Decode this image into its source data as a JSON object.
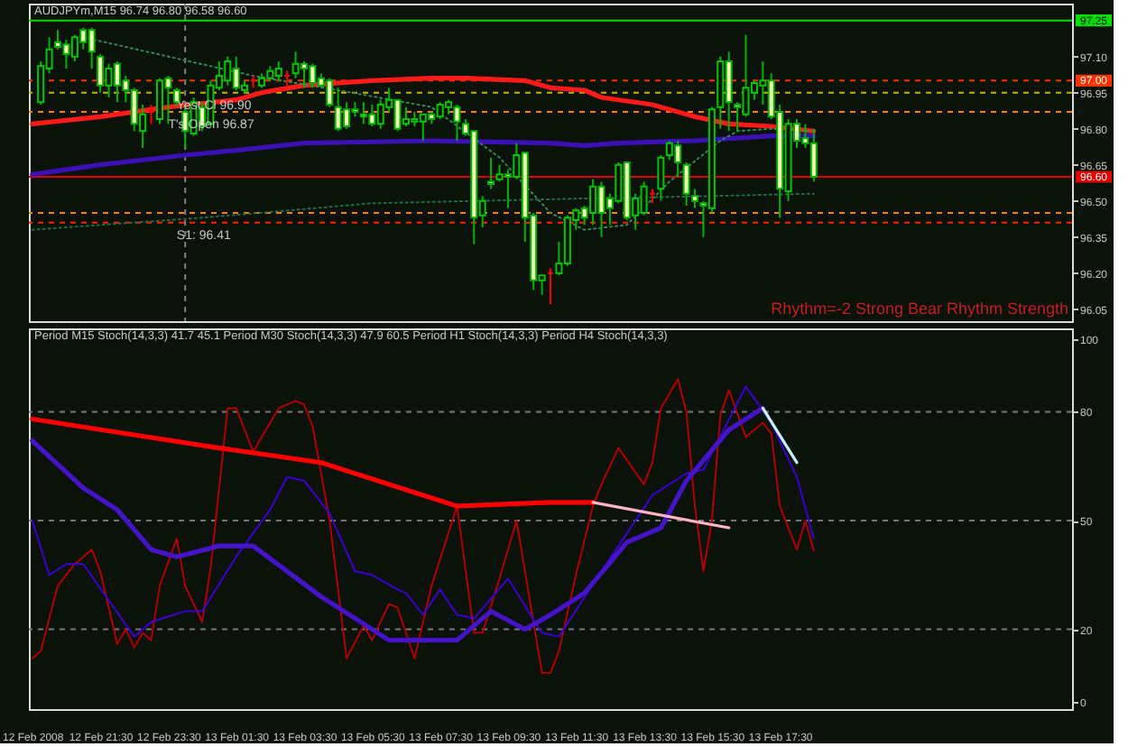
{
  "chart_data": [
    {
      "type": "candlestick",
      "title": "AUDJPYm,M15 96.74 96.80 96.58 96.60",
      "color": "#00b400",
      "x": [
        "2008-02-12T19:45",
        "2008-02-12T20:00",
        "2008-02-12T20:15",
        "2008-02-12T20:30",
        "2008-02-12T20:45",
        "2008-02-12T21:00",
        "2008-02-12T21:15",
        "2008-02-12T21:30",
        "2008-02-12T21:45",
        "2008-02-12T22:00",
        "2008-02-12T22:15",
        "2008-02-12T22:30",
        "2008-02-12T22:45",
        "2008-02-12T23:00",
        "2008-02-12T23:15",
        "2008-02-12T23:30",
        "2008-02-12T23:45",
        "2008-02-13T00:00",
        "2008-02-13T00:15",
        "2008-02-13T00:30",
        "2008-02-13T00:45",
        "2008-02-13T01:00",
        "2008-02-13T01:15",
        "2008-02-13T01:30",
        "2008-02-13T01:45",
        "2008-02-13T02:00",
        "2008-02-13T02:15",
        "2008-02-13T02:30",
        "2008-02-13T02:45",
        "2008-02-13T03:00",
        "2008-02-13T03:15",
        "2008-02-13T03:30",
        "2008-02-13T03:45",
        "2008-02-13T04:00",
        "2008-02-13T04:15",
        "2008-02-13T04:30",
        "2008-02-13T04:45",
        "2008-02-13T05:00",
        "2008-02-13T05:15",
        "2008-02-13T05:30",
        "2008-02-13T05:45",
        "2008-02-13T06:00",
        "2008-02-13T06:15",
        "2008-02-13T06:30",
        "2008-02-13T06:45",
        "2008-02-13T07:00",
        "2008-02-13T07:15",
        "2008-02-13T07:30",
        "2008-02-13T07:45",
        "2008-02-13T08:00",
        "2008-02-13T08:15",
        "2008-02-13T08:30",
        "2008-02-13T08:45",
        "2008-02-13T09:00",
        "2008-02-13T09:15",
        "2008-02-13T09:30",
        "2008-02-13T09:45",
        "2008-02-13T10:00",
        "2008-02-13T10:15",
        "2008-02-13T10:30",
        "2008-02-13T10:45",
        "2008-02-13T11:00",
        "2008-02-13T11:15",
        "2008-02-13T11:30",
        "2008-02-13T11:45",
        "2008-02-13T12:00",
        "2008-02-13T12:15",
        "2008-02-13T12:30",
        "2008-02-13T12:45",
        "2008-02-13T13:00",
        "2008-02-13T13:15",
        "2008-02-13T13:30",
        "2008-02-13T13:45",
        "2008-02-13T14:00",
        "2008-02-13T14:15",
        "2008-02-13T14:30",
        "2008-02-13T14:45",
        "2008-02-13T15:00",
        "2008-02-13T15:15",
        "2008-02-13T15:30",
        "2008-02-13T15:45",
        "2008-02-13T16:00",
        "2008-02-13T16:15",
        "2008-02-13T16:30",
        "2008-02-13T16:45",
        "2008-02-13T17:00",
        "2008-02-13T17:15",
        "2008-02-13T17:30",
        "2008-02-13T17:45",
        "2008-02-13T18:00",
        "2008-02-13T18:15",
        "2008-02-13T18:30"
      ],
      "ohlc": [
        [
          96.91,
          97.08,
          96.9,
          97.06
        ],
        [
          97.05,
          97.18,
          97.03,
          97.13
        ],
        [
          97.16,
          97.21,
          97.13,
          97.14
        ],
        [
          97.15,
          97.17,
          97.05,
          97.11
        ],
        [
          97.1,
          97.19,
          97.08,
          97.18
        ],
        [
          97.21,
          97.22,
          97.13,
          97.16
        ],
        [
          97.21,
          97.22,
          97.05,
          97.12
        ],
        [
          97.1,
          97.11,
          96.95,
          96.98
        ],
        [
          96.98,
          97.07,
          96.93,
          97.05
        ],
        [
          97.07,
          97.08,
          96.91,
          96.98
        ],
        [
          97.0,
          97.02,
          96.91,
          96.96
        ],
        [
          96.96,
          96.97,
          96.79,
          96.82
        ],
        [
          96.79,
          96.9,
          96.72,
          96.86
        ],
        [
          96.87,
          96.9,
          96.82,
          96.87
        ],
        [
          96.84,
          97.01,
          96.82,
          97.0
        ],
        [
          97.01,
          97.02,
          96.82,
          96.97
        ],
        [
          96.96,
          96.97,
          96.89,
          96.91
        ],
        [
          96.87,
          96.9,
          96.72,
          96.79
        ],
        [
          96.78,
          96.93,
          96.77,
          96.91
        ],
        [
          96.89,
          96.91,
          96.79,
          96.81
        ],
        [
          96.82,
          97.0,
          96.81,
          96.98
        ],
        [
          96.97,
          97.08,
          96.96,
          97.02
        ],
        [
          97.0,
          97.1,
          96.98,
          97.08
        ],
        [
          97.05,
          97.1,
          96.96,
          96.97
        ],
        [
          96.96,
          97.0,
          96.95,
          96.98
        ],
        [
          97.0,
          97.02,
          96.97,
          97.0
        ],
        [
          96.98,
          97.03,
          96.97,
          97.01
        ],
        [
          97.01,
          97.06,
          97.0,
          97.04
        ],
        [
          97.02,
          97.08,
          97.0,
          97.05
        ],
        [
          97.02,
          97.04,
          96.98,
          97.02
        ],
        [
          97.03,
          97.12,
          97.01,
          97.07
        ],
        [
          97.07,
          97.08,
          96.97,
          97.05
        ],
        [
          97.06,
          97.07,
          96.97,
          96.99
        ],
        [
          97.01,
          97.03,
          96.97,
          96.98
        ],
        [
          97.0,
          97.01,
          96.89,
          96.9
        ],
        [
          96.89,
          96.97,
          96.79,
          96.8
        ],
        [
          96.88,
          96.91,
          96.8,
          96.81
        ],
        [
          96.88,
          96.91,
          96.85,
          96.87
        ],
        [
          96.86,
          96.91,
          96.82,
          96.85
        ],
        [
          96.86,
          96.9,
          96.81,
          96.82
        ],
        [
          96.82,
          96.92,
          96.8,
          96.9
        ],
        [
          96.89,
          96.97,
          96.87,
          96.92
        ],
        [
          96.92,
          96.92,
          96.79,
          96.8
        ],
        [
          96.82,
          96.89,
          96.81,
          96.84
        ],
        [
          96.83,
          96.87,
          96.81,
          96.84
        ],
        [
          96.83,
          96.86,
          96.75,
          96.86
        ],
        [
          96.86,
          96.87,
          96.82,
          96.84
        ],
        [
          96.85,
          96.91,
          96.84,
          96.9
        ],
        [
          96.89,
          96.92,
          96.86,
          96.91
        ],
        [
          96.89,
          96.9,
          96.75,
          96.83
        ],
        [
          96.82,
          96.84,
          96.77,
          96.78
        ],
        [
          96.79,
          96.79,
          96.32,
          96.43
        ],
        [
          96.44,
          96.52,
          96.39,
          96.5
        ],
        [
          96.58,
          96.68,
          96.55,
          96.57
        ],
        [
          96.59,
          96.65,
          96.58,
          96.61
        ],
        [
          96.61,
          96.63,
          96.47,
          96.6
        ],
        [
          96.6,
          96.74,
          96.59,
          96.69
        ],
        [
          96.7,
          96.7,
          96.33,
          96.43
        ],
        [
          96.44,
          96.45,
          96.13,
          96.17
        ],
        [
          96.17,
          96.19,
          96.11,
          96.19
        ],
        [
          96.2,
          96.22,
          96.07,
          96.2
        ],
        [
          96.2,
          96.33,
          96.19,
          96.24
        ],
        [
          96.24,
          96.44,
          96.23,
          96.43
        ],
        [
          96.42,
          96.47,
          96.38,
          96.46
        ],
        [
          96.47,
          96.48,
          96.4,
          96.43
        ],
        [
          96.45,
          96.59,
          96.4,
          96.56
        ],
        [
          96.56,
          96.58,
          96.35,
          96.45
        ],
        [
          96.51,
          96.53,
          96.4,
          96.47
        ],
        [
          96.5,
          96.66,
          96.49,
          96.65
        ],
        [
          96.66,
          96.66,
          96.42,
          96.43
        ],
        [
          96.44,
          96.53,
          96.38,
          96.51
        ],
        [
          96.45,
          96.58,
          96.44,
          96.56
        ],
        [
          96.53,
          96.55,
          96.49,
          96.53
        ],
        [
          96.55,
          96.69,
          96.5,
          96.68
        ],
        [
          96.69,
          96.75,
          96.67,
          96.74
        ],
        [
          96.73,
          96.75,
          96.6,
          96.66
        ],
        [
          96.65,
          96.66,
          96.48,
          96.53
        ],
        [
          96.52,
          96.55,
          96.47,
          96.5
        ],
        [
          96.49,
          96.5,
          96.35,
          96.48
        ],
        [
          96.47,
          96.89,
          96.45,
          96.88
        ],
        [
          96.89,
          97.1,
          96.8,
          97.08
        ],
        [
          97.08,
          97.12,
          96.79,
          96.91
        ],
        [
          96.9,
          96.91,
          96.79,
          96.89
        ],
        [
          96.86,
          97.19,
          96.85,
          96.97
        ],
        [
          96.95,
          97.0,
          96.92,
          96.99
        ],
        [
          96.98,
          97.08,
          96.9,
          97.0
        ],
        [
          97.0,
          97.03,
          96.84,
          96.85
        ],
        [
          96.87,
          96.9,
          96.43,
          96.55
        ],
        [
          96.54,
          96.84,
          96.5,
          96.82
        ],
        [
          96.82,
          96.84,
          96.72,
          96.75
        ],
        [
          96.76,
          96.82,
          96.72,
          96.74
        ],
        [
          96.74,
          96.8,
          96.58,
          96.6
        ]
      ],
      "colors": [
        "#00c800",
        "#00c800",
        "#f0ffb4",
        "#f0ffb4",
        "#00c800",
        "#f0ffb4",
        "#f0ffb4",
        "#f0ffb4",
        "#00c800",
        "#f0ffb4",
        "#f0ffb4",
        "#f0ffb4",
        "#00c800",
        "#ff0000",
        "#00c800",
        "#f0ffb4",
        "#f0ffb4",
        "#f0ffb4",
        "#00c800",
        "#f0ffb4",
        "#00c800",
        "#00c800",
        "#00c800",
        "#f0ffb4",
        "#00c800",
        "#ff0000",
        "#00c800",
        "#00c800",
        "#00c800",
        "#ff0000",
        "#00c800",
        "#f0ffb4",
        "#f0ffb4",
        "#f0ffb4",
        "#f0ffb4",
        "#f0ffb4",
        "#f0ffb4",
        "#f0ffb4",
        "#f0ffb4",
        "#f0ffb4",
        "#00c800",
        "#00c800",
        "#f0ffb4",
        "#00c800",
        "#00c800",
        "#00c800",
        "#f0ffb4",
        "#00c800",
        "#00c800",
        "#f0ffb4",
        "#f0ffb4",
        "#f0ffb4",
        "#00c800",
        "#f0ffb4",
        "#00c800",
        "#f0ffb4",
        "#00c800",
        "#f0ffb4",
        "#f0ffb4",
        "#00c800",
        "#ff0000",
        "#00c800",
        "#00c800",
        "#00c800",
        "#f0ffb4",
        "#00c800",
        "#f0ffb4",
        "#f0ffb4",
        "#00c800",
        "#f0ffb4",
        "#00c800",
        "#00c800",
        "#ff0000",
        "#00c800",
        "#00c800",
        "#f0ffb4",
        "#f0ffb4",
        "#f0ffb4",
        "#f0ffb4",
        "#00c800",
        "#00c800",
        "#f0ffb4",
        "#f0ffb4",
        "#00c800",
        "#00c800",
        "#00c800",
        "#f0ffb4",
        "#f0ffb4",
        "#00c800",
        "#f0ffb4",
        "#f0ffb4",
        "#f0ffb4"
      ],
      "series": [
        {
          "type": "line",
          "color": "#2e8b57",
          "line_style": "dotted",
          "x": [
            "2008-02-12T21:00",
            "2008-02-12T23:30",
            "2008-02-13T02:00",
            "2008-02-13T04:30",
            "2008-02-13T07:15",
            "2008-02-13T09:15",
            "2008-02-13T10:45",
            "2008-02-13T11:45",
            "2008-02-13T13:00",
            "2008-02-13T14:15",
            "2008-02-13T15:45",
            "2008-02-13T16:15",
            "2008-02-13T17:15",
            "2008-02-13T18:30"
          ],
          "values": [
            97.18,
            97.1,
            97.02,
            96.96,
            96.89,
            96.68,
            96.45,
            96.38,
            96.4,
            96.58,
            96.75,
            96.79,
            96.8,
            96.79
          ]
        },
        {
          "type": "line",
          "color": "#1f6f4a",
          "line_style": "dotted",
          "x": [
            "2008-02-12T19:30",
            "2008-02-13T00:30",
            "2008-02-13T05:30",
            "2008-02-13T11:45",
            "2008-02-13T15:30",
            "2008-02-13T18:30"
          ],
          "values": [
            96.38,
            96.43,
            96.49,
            96.51,
            96.52,
            96.53
          ]
        },
        {
          "type": "line",
          "color": "#ff1a1a",
          "x": [
            "2008-02-12T19:30",
            "2008-02-12T21:30",
            "2008-02-12T23:30",
            "2008-02-13T01:30",
            "2008-02-13T02:15",
            "2008-02-13T03:30",
            "2008-02-13T05:30",
            "2008-02-13T07:15",
            "2008-02-13T08:15",
            "2008-02-13T10:00",
            "2008-02-13T10:45",
            "2008-02-13T11:45",
            "2008-02-13T12:15",
            "2008-02-13T13:45",
            "2008-02-13T15:00",
            "2008-02-13T16:00",
            "2008-02-13T17:15",
            "2008-02-13T18:30"
          ],
          "values": [
            96.82,
            96.85,
            96.89,
            96.92,
            96.95,
            96.98,
            97.0,
            97.01,
            97.01,
            97.0,
            96.97,
            96.96,
            96.93,
            96.9,
            96.85,
            96.82,
            96.81,
            96.79
          ]
        },
        {
          "type": "line",
          "color": "#3c10b4",
          "x": [
            "2008-02-12T19:30",
            "2008-02-12T21:30",
            "2008-02-13T00:00",
            "2008-02-13T01:30",
            "2008-02-13T03:30",
            "2008-02-13T07:15",
            "2008-02-13T10:45",
            "2008-02-13T11:45",
            "2008-02-13T12:45",
            "2008-02-13T15:00",
            "2008-02-13T17:15",
            "2008-02-13T18:30"
          ],
          "values": [
            96.61,
            96.65,
            96.69,
            96.71,
            96.74,
            96.75,
            96.74,
            96.73,
            96.74,
            96.75,
            96.77,
            96.77
          ]
        }
      ],
      "xlim": [
        "2008-02-12T19:24",
        "2008-02-14T02:06"
      ],
      "ylim": [
        96.0,
        97.32
      ],
      "yticks": [
        {
          "value": 97.1,
          "label": "97.10"
        },
        96.95,
        {
          "value": 96.8,
          "label": "96.80"
        },
        96.65,
        {
          "value": 96.5,
          "label": "96.50"
        },
        96.35,
        {
          "value": 96.2,
          "label": "96.20"
        },
        96.05
      ],
      "tick_labels": "y",
      "ref_lines": [
        {
          "axis": "y",
          "value": 97.25,
          "color": "#00e000",
          "line_style": "solid",
          "label": "97.25"
        },
        {
          "axis": "y",
          "value": 97.0,
          "color": "#ff3000",
          "line_style": "dashed",
          "label": "97.00"
        },
        {
          "axis": "y",
          "value": 96.95,
          "color": "#c8b400",
          "line_style": "dashed"
        },
        {
          "axis": "y",
          "value": 96.87,
          "color": "#ff8000",
          "line_style": "dashed"
        },
        {
          "axis": "y",
          "value": 96.6,
          "color": "#e00000",
          "line_style": "solid",
          "label": "96.60"
        },
        {
          "axis": "y",
          "value": 96.45,
          "color": "#ff8000",
          "line_style": "dashed"
        },
        {
          "axis": "y",
          "value": 96.41,
          "color": "#ff2000",
          "line_style": "dashed"
        },
        {
          "axis": "x",
          "value": "2008-02-13T00:00",
          "color": "#808080",
          "line_style": "dashed"
        }
      ],
      "annotations": [
        {
          "text": "Yest Cl 96.90",
          "x": "2008-02-12T23:45",
          "y": 96.95
        },
        {
          "text": "T's Open 96.87",
          "x": "2008-02-12T23:30",
          "y": 96.87
        },
        {
          "text": "S1: 96.41",
          "x": "2008-02-12T23:45",
          "y": 96.41
        },
        "Rhythm=-2 Strong Bear Rhythm Strength"
      ]
    },
    {
      "type": "line",
      "title": "Period M15 Stoch(14,3,3) 41.7 45.1 Period M30 Stoch(14,3,3) 47.9 60.5 Period H1 Stoch(14,3,3) Period H4 Stoch(14,3,3)",
      "series": [
        {
          "color": "#b40000",
          "x": [
            "2008-02-12T19:30",
            "2008-02-12T19:45",
            "2008-02-12T20:15",
            "2008-02-12T20:45",
            "2008-02-12T21:15",
            "2008-02-12T21:30",
            "2008-02-12T22:00",
            "2008-02-12T22:15",
            "2008-02-12T22:30",
            "2008-02-12T22:45",
            "2008-02-12T23:00",
            "2008-02-12T23:15",
            "2008-02-12T23:45",
            "2008-02-13T00:00",
            "2008-02-13T00:30",
            "2008-02-13T00:45",
            "2008-02-13T01:15",
            "2008-02-13T01:30",
            "2008-02-13T02:00",
            "2008-02-13T02:45",
            "2008-02-13T03:15",
            "2008-02-13T03:30",
            "2008-02-13T03:45",
            "2008-02-13T04:15",
            "2008-02-13T04:45",
            "2008-02-13T05:15",
            "2008-02-13T05:30",
            "2008-02-13T06:00",
            "2008-02-13T06:15",
            "2008-02-13T06:45",
            "2008-02-13T07:15",
            "2008-02-13T08:00",
            "2008-02-13T08:30",
            "2008-02-13T08:45",
            "2008-02-13T09:15",
            "2008-02-13T09:45",
            "2008-02-13T10:30",
            "2008-02-13T10:45",
            "2008-02-13T11:00",
            "2008-02-13T11:30",
            "2008-02-13T12:00",
            "2008-02-13T12:15",
            "2008-02-13T12:45",
            "2008-02-13T13:30",
            "2008-02-13T13:45",
            "2008-02-13T14:00",
            "2008-02-13T14:30",
            "2008-02-13T14:45",
            "2008-02-13T15:00",
            "2008-02-13T15:15",
            "2008-02-13T15:30",
            "2008-02-13T15:45",
            "2008-02-13T16:00",
            "2008-02-13T16:30",
            "2008-02-13T17:00",
            "2008-02-13T17:15",
            "2008-02-13T17:30",
            "2008-02-13T18:00",
            "2008-02-13T18:15",
            "2008-02-13T18:30"
          ],
          "values": [
            12,
            14,
            32,
            38,
            42,
            36,
            16,
            20,
            15,
            19,
            17,
            32,
            45,
            32,
            22,
            37,
            81,
            81,
            69,
            81,
            83,
            82,
            76,
            50,
            12,
            21,
            17,
            27,
            26,
            12,
            32,
            54,
            19,
            19,
            34,
            50,
            8,
            8,
            14,
            35,
            54,
            60,
            70,
            60,
            66,
            81,
            89,
            80,
            54,
            36,
            50,
            79,
            86,
            73,
            77,
            74,
            54,
            42,
            50,
            41.7
          ]
        },
        {
          "color": "#3c00d2",
          "x": [
            "2008-02-12T19:30",
            "2008-02-12T20:00",
            "2008-02-12T20:30",
            "2008-02-12T21:00",
            "2008-02-12T22:30",
            "2008-02-12T23:00",
            "2008-02-13T00:00",
            "2008-02-13T00:30",
            "2008-02-13T01:30",
            "2008-02-13T02:30",
            "2008-02-13T03:00",
            "2008-02-13T03:30",
            "2008-02-13T04:15",
            "2008-02-13T05:00",
            "2008-02-13T05:30",
            "2008-02-13T06:15",
            "2008-02-13T06:30",
            "2008-02-13T07:00",
            "2008-02-13T07:30",
            "2008-02-13T08:00",
            "2008-02-13T08:30",
            "2008-02-13T09:30",
            "2008-02-13T10:30",
            "2008-02-13T11:00",
            "2008-02-13T12:15",
            "2008-02-13T13:45",
            "2008-02-13T14:45",
            "2008-02-13T15:15",
            "2008-02-13T16:30",
            "2008-02-13T17:15",
            "2008-02-13T18:00",
            "2008-02-13T18:30"
          ],
          "values": [
            50,
            35,
            38,
            38,
            18,
            22,
            25,
            25,
            40,
            53,
            62,
            61,
            52,
            36,
            35,
            31,
            30,
            24,
            31,
            24,
            23,
            34,
            19,
            18,
            36,
            57,
            63,
            64,
            87,
            77,
            62,
            45.1
          ]
        },
        {
          "color": "#ff0000",
          "x": [
            "2008-02-12T19:30",
            "2008-02-13T01:00",
            "2008-02-13T04:00",
            "2008-02-13T08:00",
            "2008-02-13T10:45",
            "2008-02-13T12:00"
          ],
          "values": [
            78,
            70,
            66,
            54,
            55,
            55
          ]
        },
        {
          "color": "#4614c8",
          "x": [
            "2008-02-12T19:30",
            "2008-02-12T21:00",
            "2008-02-12T22:00",
            "2008-02-12T23:00",
            "2008-02-12T23:45",
            "2008-02-13T01:00",
            "2008-02-13T02:00",
            "2008-02-13T04:00",
            "2008-02-13T06:00",
            "2008-02-13T08:00",
            "2008-02-13T09:00",
            "2008-02-13T10:00",
            "2008-02-13T10:45",
            "2008-02-13T11:45",
            "2008-02-13T13:00",
            "2008-02-13T14:00",
            "2008-02-13T14:45",
            "2008-02-13T16:00",
            "2008-02-13T17:00"
          ],
          "values": [
            72,
            59,
            53,
            42,
            40,
            43,
            43,
            29,
            17,
            17,
            25,
            20,
            24,
            30,
            44,
            48,
            61,
            75,
            81
          ]
        },
        {
          "color": "#ffb4c8",
          "x": [
            "2008-02-13T12:00",
            "2008-02-13T16:00"
          ],
          "values": [
            55,
            48
          ]
        },
        {
          "color": "#c8f0ff",
          "x": [
            "2008-02-13T17:00",
            "2008-02-13T18:00"
          ],
          "values": [
            81,
            66
          ]
        }
      ],
      "xlim": [
        "2008-02-12T19:24",
        "2008-02-14T02:06"
      ],
      "xticks": [
        {
          "value": "2008-02-12T19:30",
          "label": "12 Feb 2008"
        },
        {
          "value": "2008-02-12T21:30",
          "label": "12 Feb 21:30"
        },
        {
          "value": "2008-02-12T23:30",
          "label": "12 Feb 23:30"
        },
        {
          "value": "2008-02-13T01:30",
          "label": "13 Feb 01:30"
        },
        {
          "value": "2008-02-13T03:30",
          "label": "13 Feb 03:30"
        },
        {
          "value": "2008-02-13T05:30",
          "label": "13 Feb 05:30"
        },
        {
          "value": "2008-02-13T07:30",
          "label": "13 Feb 07:30"
        },
        {
          "value": "2008-02-13T09:30",
          "label": "13 Feb 09:30"
        },
        {
          "value": "2008-02-13T11:30",
          "label": "13 Feb 11:30"
        },
        {
          "value": "2008-02-13T13:30",
          "label": "13 Feb 13:30"
        },
        {
          "value": "2008-02-13T15:30",
          "label": "13 Feb 15:30"
        },
        {
          "value": "2008-02-13T17:30",
          "label": "13 Feb 17:30"
        }
      ],
      "ylim": [
        -2,
        103
      ],
      "yticks": [
        0,
        20,
        50,
        80,
        100
      ],
      "ref_lines": [
        {
          "axis": "y",
          "value": 80,
          "color": "#787878",
          "line_style": "dashed"
        },
        {
          "axis": "y",
          "value": 50,
          "color": "#787878",
          "line_style": "dashed"
        },
        {
          "axis": "y",
          "value": 20,
          "color": "#787878",
          "line_style": "dashed"
        }
      ]
    }
  ]
}
